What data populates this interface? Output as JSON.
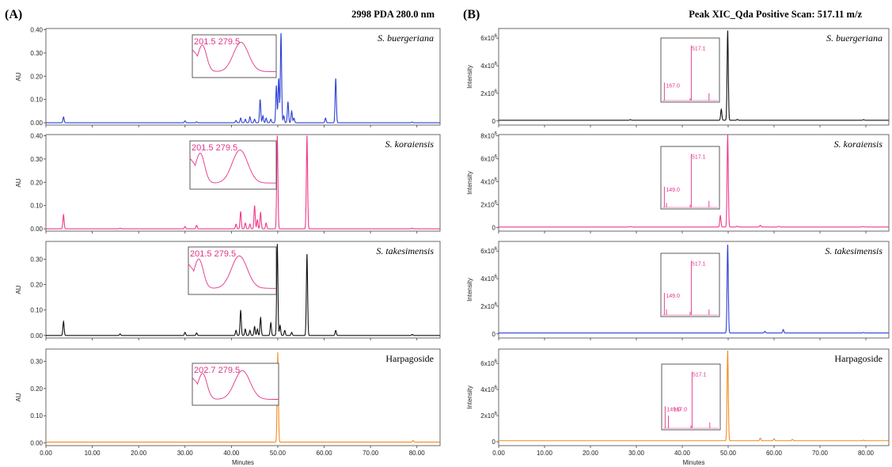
{
  "panels": {
    "a": {
      "letter": "(A)",
      "header": "2998 PDA 280.0 nm"
    },
    "b": {
      "letter": "(B)",
      "header": "Peak XIC_Qda Positive Scan: 517.11 m/z"
    }
  },
  "chart_data": [
    {
      "type": "line",
      "panel": "A",
      "sample": "S. buergeriana",
      "italic": true,
      "ylabel": "AU",
      "xlabel": "",
      "xlim": [
        0,
        85
      ],
      "ylim": [
        -0.01,
        0.405
      ],
      "yticks": [
        0.0,
        0.1,
        0.2,
        0.3,
        0.4
      ],
      "ytick_labels": [
        "0.00",
        "0.10",
        "0.20",
        "0.30",
        "0.40"
      ],
      "xticks": [
        0,
        10,
        20,
        30,
        40,
        50,
        60,
        70,
        80
      ],
      "xtick_labels": [],
      "color": "#2b3fd6",
      "baseline": 0.0,
      "peaks": [
        [
          3.8,
          0.025
        ],
        [
          30,
          0.008
        ],
        [
          32.5,
          0.004
        ],
        [
          41,
          0.01
        ],
        [
          42,
          0.02
        ],
        [
          43,
          0.015
        ],
        [
          44,
          0.025
        ],
        [
          45,
          0.015
        ],
        [
          46.2,
          0.1
        ],
        [
          46.8,
          0.03
        ],
        [
          47.5,
          0.02
        ],
        [
          48.5,
          0.015
        ],
        [
          49.7,
          0.16
        ],
        [
          50.2,
          0.19
        ],
        [
          50.7,
          0.385
        ],
        [
          51.3,
          0.03
        ],
        [
          52.2,
          0.09
        ],
        [
          53,
          0.05
        ],
        [
          53.5,
          0.02
        ],
        [
          60.3,
          0.02
        ],
        [
          62.5,
          0.19
        ],
        [
          79,
          0.003
        ]
      ],
      "inset": {
        "type": "uv-spectrum",
        "labels": [
          "201.5",
          "279.5"
        ]
      }
    },
    {
      "type": "line",
      "panel": "A",
      "sample": "S. koraiensis",
      "italic": true,
      "ylabel": "AU",
      "xlabel": "",
      "xlim": [
        0,
        85
      ],
      "ylim": [
        -0.01,
        0.405
      ],
      "yticks": [
        0.0,
        0.1,
        0.2,
        0.3,
        0.4
      ],
      "ytick_labels": [
        "0.00",
        "0.10",
        "0.20",
        "0.30",
        "0.40"
      ],
      "xticks": [
        0,
        10,
        20,
        30,
        40,
        50,
        60,
        70,
        80
      ],
      "xtick_labels": [],
      "color": "#ee3a8c",
      "baseline": 0.0,
      "peaks": [
        [
          3.8,
          0.06
        ],
        [
          16,
          0.003
        ],
        [
          30,
          0.01
        ],
        [
          32.5,
          0.015
        ],
        [
          41,
          0.02
        ],
        [
          42,
          0.075
        ],
        [
          43,
          0.025
        ],
        [
          44,
          0.02
        ],
        [
          45,
          0.1
        ],
        [
          45.6,
          0.04
        ],
        [
          46.3,
          0.07
        ],
        [
          47.5,
          0.025
        ],
        [
          49.9,
          0.4
        ],
        [
          56.3,
          0.4
        ],
        [
          79,
          0.003
        ]
      ],
      "inset": {
        "type": "uv-spectrum",
        "labels": [
          "201.5",
          "279.5"
        ]
      }
    },
    {
      "type": "line",
      "panel": "A",
      "sample": "S. takesimensis",
      "italic": true,
      "ylabel": "AU",
      "xlabel": "",
      "xlim": [
        0,
        85
      ],
      "ylim": [
        -0.01,
        0.37
      ],
      "yticks": [
        0.0,
        0.1,
        0.2,
        0.3
      ],
      "ytick_labels": [
        "0.00",
        "0.10",
        "0.20",
        "0.30"
      ],
      "xticks": [
        0,
        10,
        20,
        30,
        40,
        50,
        60,
        70,
        80
      ],
      "xtick_labels": [],
      "color": "#111111",
      "baseline": 0.0,
      "peaks": [
        [
          3.8,
          0.055
        ],
        [
          16,
          0.006
        ],
        [
          30,
          0.012
        ],
        [
          32.5,
          0.01
        ],
        [
          41,
          0.02
        ],
        [
          42,
          0.1
        ],
        [
          43,
          0.025
        ],
        [
          44,
          0.02
        ],
        [
          45,
          0.035
        ],
        [
          45.6,
          0.025
        ],
        [
          46.3,
          0.07
        ],
        [
          48.5,
          0.05
        ],
        [
          49.9,
          0.36
        ],
        [
          50.5,
          0.04
        ],
        [
          51.5,
          0.02
        ],
        [
          53,
          0.012
        ],
        [
          56.3,
          0.32
        ],
        [
          62.5,
          0.02
        ],
        [
          79,
          0.004
        ]
      ],
      "inset": {
        "type": "uv-spectrum",
        "labels": [
          "201.5",
          "279.5"
        ]
      }
    },
    {
      "type": "line",
      "panel": "A",
      "sample": "Harpagoside",
      "italic": false,
      "ylabel": "AU",
      "xlabel": "Minutes",
      "xlim": [
        0,
        85
      ],
      "ylim": [
        -0.01,
        0.345
      ],
      "yticks": [
        0.0,
        0.1,
        0.2,
        0.3
      ],
      "ytick_labels": [
        "0.00",
        "0.10",
        "0.20",
        "0.30"
      ],
      "xticks": [
        0,
        10,
        20,
        30,
        40,
        50,
        60,
        70,
        80
      ],
      "xtick_labels": [
        "0.00",
        "10.00",
        "20.00",
        "30.00",
        "40.00",
        "50.00",
        "60.00",
        "70.00",
        "80.00"
      ],
      "color": "#f28c1e",
      "baseline": 0.003,
      "peaks": [
        [
          50,
          0.33
        ],
        [
          79.2,
          0.006
        ]
      ],
      "inset": {
        "type": "uv-spectrum",
        "labels": [
          "202.7",
          "279.5"
        ]
      }
    },
    {
      "type": "line",
      "panel": "B",
      "sample": "S. buergeriana",
      "italic": true,
      "ylabel": "Intensity",
      "xlabel": "",
      "xlim": [
        0,
        85
      ],
      "ylim": [
        -300000,
        6700000
      ],
      "yticks": [
        0,
        2000000,
        4000000,
        6000000
      ],
      "ytick_labels": [
        [
          "0",
          ""
        ],
        [
          "2x10",
          "6"
        ],
        [
          "4x10",
          "6"
        ],
        [
          "6x10",
          "6"
        ]
      ],
      "xticks": [
        0,
        10,
        20,
        30,
        40,
        50,
        60,
        70,
        80
      ],
      "xtick_labels": [],
      "color": "#111111",
      "baseline": 50000,
      "peaks": [
        [
          28.7,
          40000
        ],
        [
          48.5,
          800000
        ],
        [
          49.9,
          6500000
        ],
        [
          52,
          60000
        ],
        [
          79.5,
          40000
        ]
      ],
      "inset": {
        "type": "mass-spectrum",
        "labels": [
          "517.1",
          "167.0"
        ],
        "sticks": [
          [
            0.02,
            0.32
          ],
          [
            0.5,
            0.04
          ],
          [
            0.52,
            0.98
          ],
          [
            0.85,
            0.13
          ]
        ],
        "label_pos": [
          [
            0.5,
            0.98
          ],
          [
            0.02,
            0.32
          ]
        ]
      }
    },
    {
      "type": "line",
      "panel": "B",
      "sample": "S. koraiensis",
      "italic": true,
      "ylabel": "Intensity",
      "xlabel": "",
      "xlim": [
        0,
        85
      ],
      "ylim": [
        -300000,
        8100000
      ],
      "yticks": [
        0,
        2000000,
        4000000,
        6000000,
        8000000
      ],
      "ytick_labels": [
        [
          "0",
          ""
        ],
        [
          "2x10",
          "6"
        ],
        [
          "4x10",
          "6"
        ],
        [
          "6x10",
          "6"
        ],
        [
          "8x10",
          "6"
        ]
      ],
      "xticks": [
        0,
        10,
        20,
        30,
        40,
        50,
        60,
        70,
        80
      ],
      "xtick_labels": [],
      "color": "#ee3a8c",
      "baseline": 60000,
      "peaks": [
        [
          28.7,
          40000
        ],
        [
          48.3,
          1000000
        ],
        [
          49.9,
          8000000
        ],
        [
          52,
          80000
        ],
        [
          57,
          150000
        ],
        [
          61,
          60000
        ],
        [
          79.5,
          40000
        ]
      ],
      "inset": {
        "type": "mass-spectrum",
        "labels": [
          "517.1",
          "149.0"
        ],
        "sticks": [
          [
            0.02,
            0.38
          ],
          [
            0.06,
            0.08
          ],
          [
            0.5,
            0.05
          ],
          [
            0.52,
            0.98
          ],
          [
            0.85,
            0.12
          ]
        ],
        "label_pos": [
          [
            0.5,
            0.98
          ],
          [
            0.02,
            0.38
          ]
        ]
      }
    },
    {
      "type": "line",
      "panel": "B",
      "sample": "S. takesimensis",
      "italic": true,
      "ylabel": "Intensity",
      "xlabel": "",
      "xlim": [
        0,
        85
      ],
      "ylim": [
        -300000,
        6700000
      ],
      "yticks": [
        0,
        2000000,
        4000000,
        6000000
      ],
      "ytick_labels": [
        [
          "0",
          ""
        ],
        [
          "2x10",
          "6"
        ],
        [
          "4x10",
          "6"
        ],
        [
          "6x10",
          "6"
        ]
      ],
      "xticks": [
        0,
        10,
        20,
        30,
        40,
        50,
        60,
        70,
        80
      ],
      "xtick_labels": [],
      "color": "#2b3fd6",
      "baseline": 60000,
      "peaks": [
        [
          49.9,
          6400000
        ],
        [
          58,
          120000
        ],
        [
          62,
          250000
        ],
        [
          79.5,
          40000
        ]
      ],
      "inset": {
        "type": "mass-spectrum",
        "labels": [
          "517.1",
          "149.0"
        ],
        "sticks": [
          [
            0.02,
            0.4
          ],
          [
            0.06,
            0.1
          ],
          [
            0.5,
            0.06
          ],
          [
            0.52,
            0.98
          ],
          [
            0.85,
            0.1
          ]
        ],
        "label_pos": [
          [
            0.5,
            0.98
          ],
          [
            0.02,
            0.4
          ]
        ]
      }
    },
    {
      "type": "line",
      "panel": "B",
      "sample": "Harpagoside",
      "italic": false,
      "ylabel": "Intensity",
      "xlabel": "Minutes",
      "xlim": [
        0,
        85
      ],
      "ylim": [
        -300000,
        7100000
      ],
      "yticks": [
        0,
        2000000,
        4000000,
        6000000
      ],
      "ytick_labels": [
        [
          "0",
          ""
        ],
        [
          "2x10",
          "6"
        ],
        [
          "4x10",
          "6"
        ],
        [
          "6x10",
          "6"
        ]
      ],
      "xticks": [
        0,
        10,
        20,
        30,
        40,
        50,
        60,
        70,
        80
      ],
      "xtick_labels": [
        "0.00",
        "10.00",
        "20.00",
        "30.00",
        "40.00",
        "50.00",
        "60.00",
        "70.00",
        "80.00"
      ],
      "color": "#f28c1e",
      "baseline": 80000,
      "peaks": [
        [
          49.9,
          6900000
        ],
        [
          57,
          200000
        ],
        [
          60,
          150000
        ],
        [
          64,
          100000
        ],
        [
          79.5,
          40000
        ]
      ],
      "inset": {
        "type": "mass-spectrum",
        "labels": [
          "517.1",
          "149.0",
          "167.0"
        ],
        "sticks": [
          [
            0.02,
            0.38
          ],
          [
            0.08,
            0.22
          ],
          [
            0.5,
            0.05
          ],
          [
            0.52,
            0.98
          ],
          [
            0.85,
            0.1
          ]
        ],
        "label_pos": [
          [
            0.5,
            0.98
          ],
          [
            0.02,
            0.38
          ],
          [
            0.14,
            0.38
          ]
        ]
      }
    }
  ]
}
